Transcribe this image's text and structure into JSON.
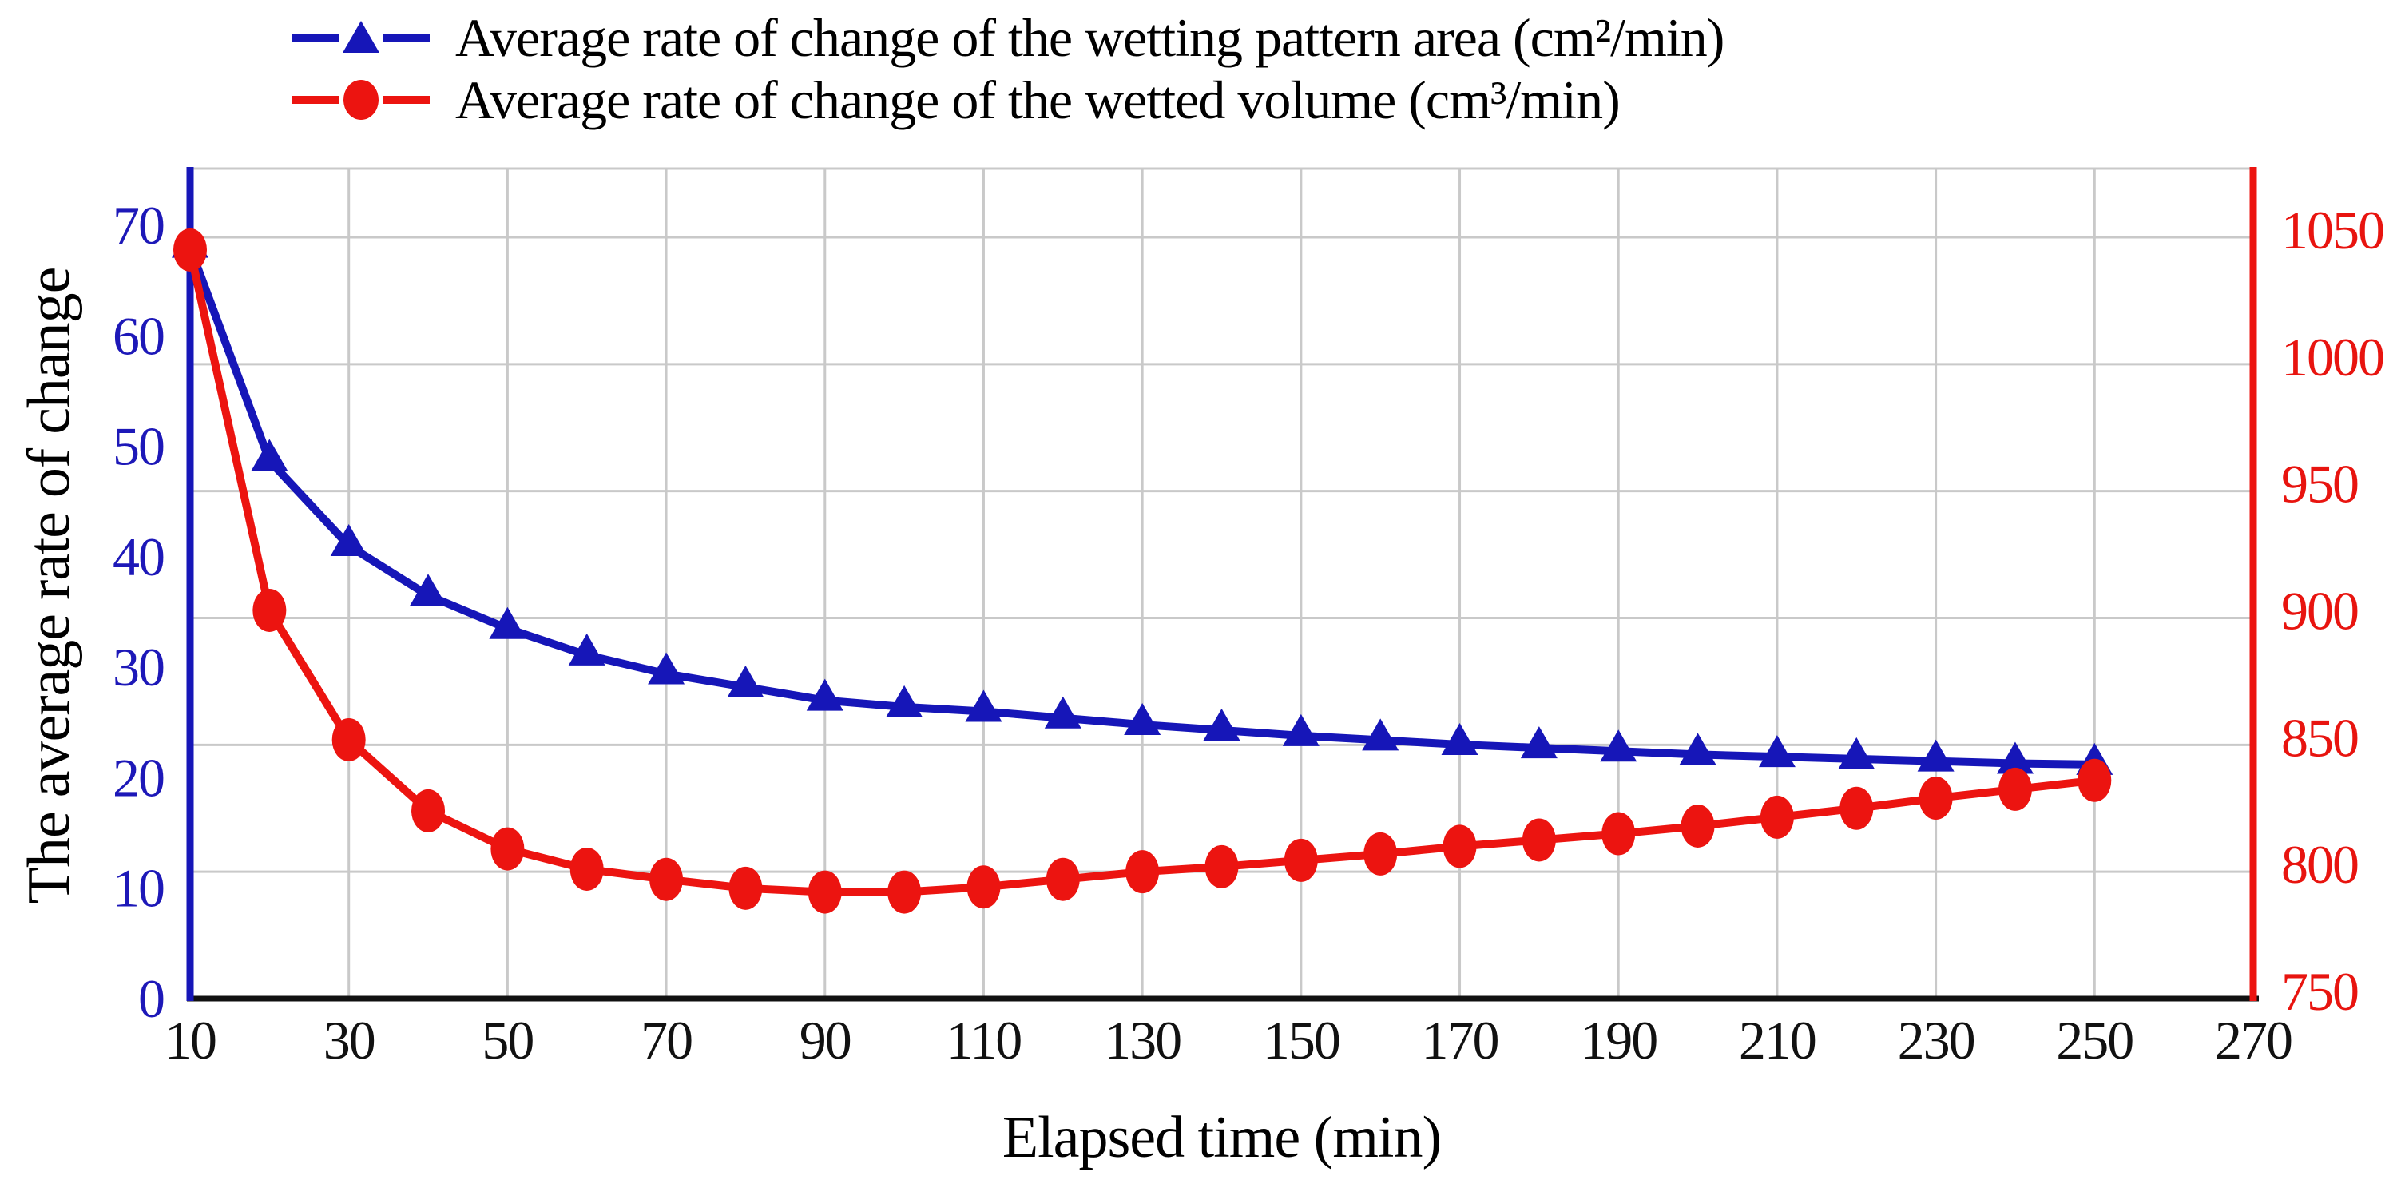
{
  "chart_data": {
    "type": "line",
    "title": "",
    "xlabel": "Elapsed time (min)",
    "ylabel_left": "The average rate of change",
    "legend_position": "top",
    "grid": true,
    "x": [
      10,
      20,
      30,
      40,
      50,
      60,
      70,
      80,
      90,
      100,
      110,
      120,
      130,
      140,
      150,
      160,
      170,
      180,
      190,
      200,
      210,
      220,
      230,
      240,
      250
    ],
    "series": [
      {
        "name": "Average rate of change of the wetting pattern area (cm²/min)",
        "axis": "left",
        "marker": "triangle",
        "color": "#1616b8",
        "values": [
          68,
          48.7,
          41,
          36.5,
          33.5,
          31.1,
          29.4,
          28.2,
          27,
          26.4,
          26,
          25.4,
          24.8,
          24.3,
          23.8,
          23.4,
          23,
          22.7,
          22.4,
          22.1,
          21.9,
          21.7,
          21.5,
          21.3,
          21.2
        ]
      },
      {
        "name": "Average rate of change of the wetted volume (cm³/min)",
        "axis": "right",
        "marker": "circle",
        "color": "#ec1410",
        "values": [
          1045,
          903,
          852,
          824,
          809,
          801,
          797,
          793.5,
          792,
          792,
          794,
          797,
          800,
          802,
          804.5,
          807,
          810,
          812.5,
          815,
          818,
          821.5,
          825,
          829,
          832.5,
          836
        ]
      }
    ],
    "x_axis": {
      "min": 10,
      "max": 270,
      "ticks": [
        10,
        30,
        50,
        70,
        90,
        110,
        130,
        150,
        170,
        190,
        210,
        230,
        250,
        270
      ],
      "color": "#111111"
    },
    "y_axis_left": {
      "min": 0,
      "max": 70,
      "ticks": [
        0,
        10,
        20,
        30,
        40,
        50,
        60,
        70
      ],
      "color": "#1d18b8"
    },
    "y_axis_right": {
      "min": 750,
      "max": 1050,
      "ticks": [
        750,
        800,
        850,
        900,
        950,
        1000,
        1050
      ],
      "color": "#e8140f"
    },
    "gridline_values_right_axis": [
      800,
      850,
      900,
      950,
      1000,
      1050
    ],
    "gridline_x_values": [
      30,
      50,
      70,
      90,
      110,
      130,
      150,
      170,
      190,
      210,
      230,
      250
    ]
  },
  "colors": {
    "grid": "#c9c9c9",
    "plot_border_top": "#c9c9c9",
    "bottom_axis": "#111111",
    "left_axis": "#1616b8",
    "right_axis": "#ec1410",
    "background": "#ffffff"
  }
}
